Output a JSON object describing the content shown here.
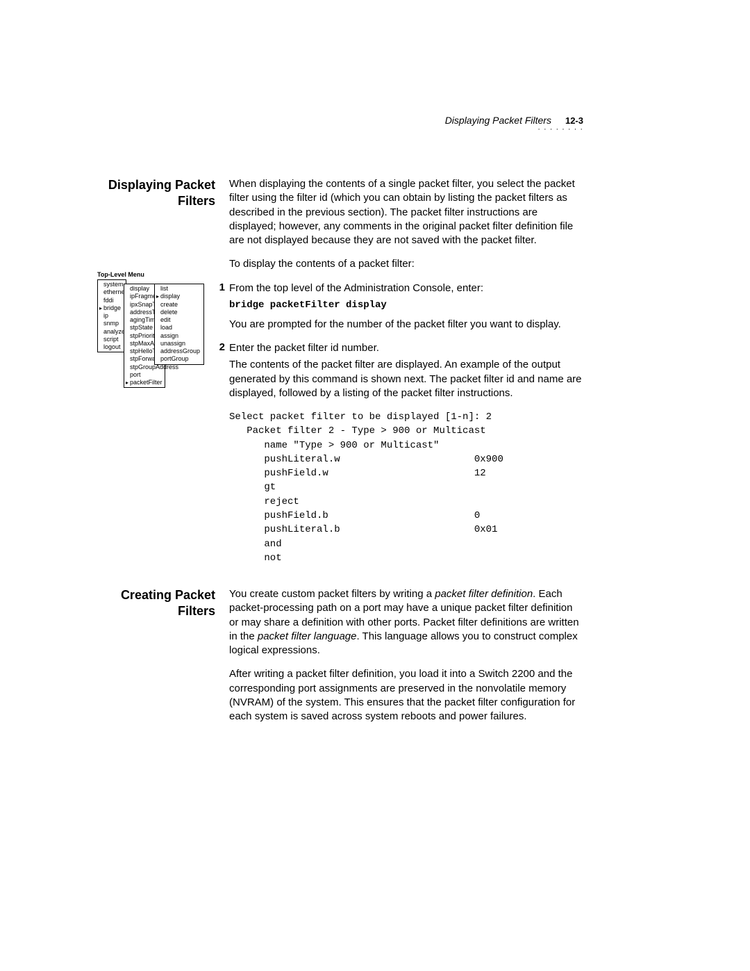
{
  "header": {
    "title": "Displaying Packet Filters",
    "page": "12-3",
    "dots": "· · · · · · · ·"
  },
  "section1": {
    "heading": "Displaying Packet Filters",
    "intro": "When displaying the contents of a single packet filter, you select the packet filter using the filter id (which you can obtain by listing the packet filters as described in the previous section). The packet filter instructions are displayed; however, any comments in the original packet filter definition file are not displayed because they are not saved with the packet filter.",
    "lead": "To display the contents of a packet filter:",
    "step1_num": "1",
    "step1_text": "From the top level of the Administration Console, enter:",
    "command": "bridge packetFilter display",
    "after_command": "You are prompted for the number of the packet filter you want to display.",
    "step2_num": "2",
    "step2_text": "Enter the packet filter id number.",
    "after_step2": "The contents of the packet filter are displayed. An example of the output generated by this command is shown next. The packet filter id and name are displayed, followed by a listing of the packet filter instructions.",
    "code": "Select packet filter to be displayed [1-n]: 2\n   Packet filter 2 - Type > 900 or Multicast\n      name \"Type > 900 or Multicast\"\n      pushLiteral.w                       0x900\n      pushField.w                         12\n      gt\n      reject\n      pushField.b                         0\n      pushLiteral.b                       0x01\n      and\n      not"
  },
  "section2": {
    "heading": "Creating Packet Filters",
    "p1a": "You create custom packet filters by writing a ",
    "p1_em1": "packet filter definition",
    "p1b": ". Each packet-processing path on a port may have a unique packet filter definition or may share a definition with other ports. Packet filter definitions are written in the ",
    "p1_em2": "packet filter language",
    "p1c": ". This language allows you to construct complex logical expressions.",
    "p2": "After writing a packet filter definition, you load it into a Switch 2200 and the corresponding port assignments are preserved in the nonvolatile memory (NVRAM) of the system. This ensures that the packet filter configuration for each system is saved across system reboots and power failures."
  },
  "menu": {
    "title": "Top-Level Menu",
    "col1": [
      "system",
      "ethernet",
      "fddi",
      "bridge",
      "ip",
      "snmp",
      "analyze",
      "script",
      "logout"
    ],
    "col1_selected": "bridge",
    "col2": [
      "display",
      "ipFragment",
      "ipxSnapTr",
      "addressTh",
      "agingTime",
      "stpState",
      "stpPriority",
      "stpMaxAge",
      "stpHelloTi",
      "stpForwar",
      "stpGroupAddress",
      "port",
      "packetFilter"
    ],
    "col2_selected": "packetFilter",
    "col3": [
      "list",
      "display",
      "create",
      "delete",
      "edit",
      "load",
      "assign",
      "unassign",
      "addressGroup",
      "portGroup"
    ],
    "col3_selected": "display"
  }
}
